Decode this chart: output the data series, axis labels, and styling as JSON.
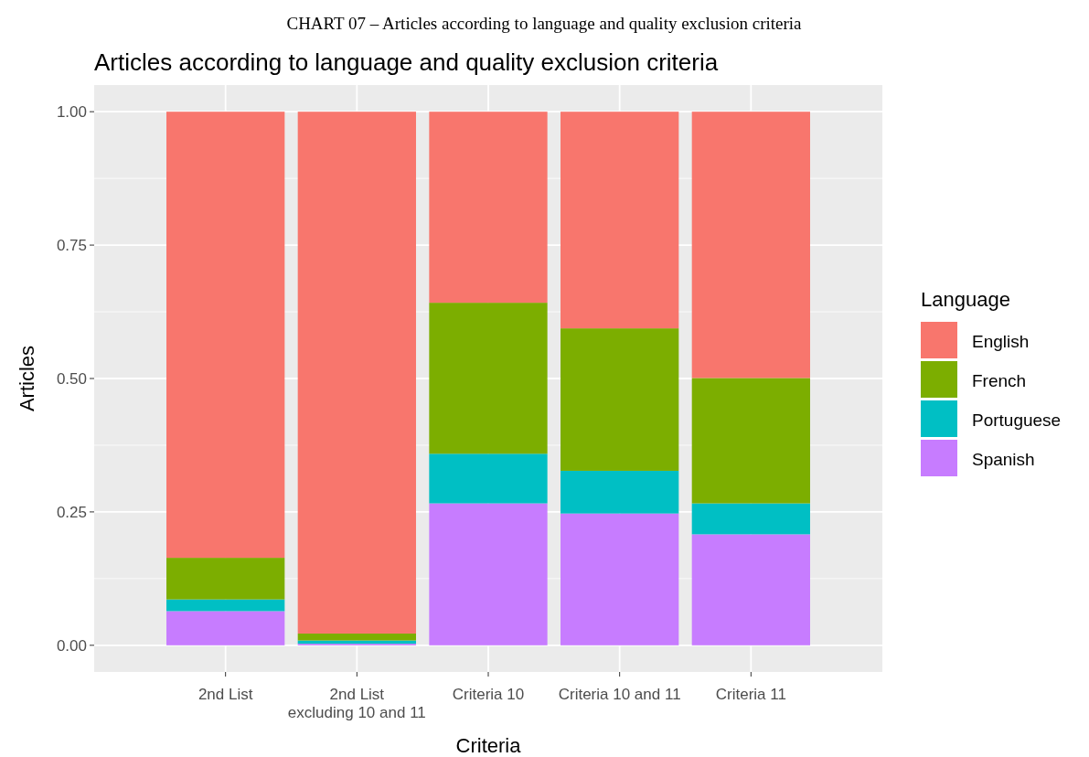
{
  "chart_data": {
    "type": "bar",
    "title": "Articles according to language and quality exclusion criteria",
    "annotations": [
      "CHART 07 – Articles according to language and quality exclusion criteria"
    ],
    "xlabel": "Criteria",
    "ylabel": "Articles",
    "legend_title": "Language",
    "categories": [
      "2nd List",
      "2nd List\nexcluding 10 and 11",
      "Criteria 10",
      "Criteria 10 and 11",
      "Criteria 11"
    ],
    "stacked": true,
    "ylim": [
      -0.05,
      1.05
    ],
    "yticks": [
      {
        "value": 0,
        "label": "0.00"
      },
      {
        "value": 0.25,
        "label": "0.25"
      },
      {
        "value": 0.5,
        "label": "0.50"
      },
      {
        "value": 0.75,
        "label": "0.75"
      },
      {
        "value": 1,
        "label": "1.00"
      }
    ],
    "grid": true,
    "legend": "right",
    "series": [
      {
        "name": "Spanish",
        "color": "#c77cff",
        "values": [
          0.064,
          0.003,
          0.266,
          0.247,
          0.208
        ]
      },
      {
        "name": "Portuguese",
        "color": "#00bfc4",
        "values": [
          0.022,
          0.006,
          0.093,
          0.08,
          0.058
        ]
      },
      {
        "name": "French",
        "color": "#7cae00",
        "values": [
          0.078,
          0.013,
          0.283,
          0.267,
          0.235
        ]
      },
      {
        "name": "English",
        "color": "#f8766d",
        "values": [
          0.836,
          0.978,
          0.358,
          0.406,
          0.499
        ]
      }
    ]
  }
}
